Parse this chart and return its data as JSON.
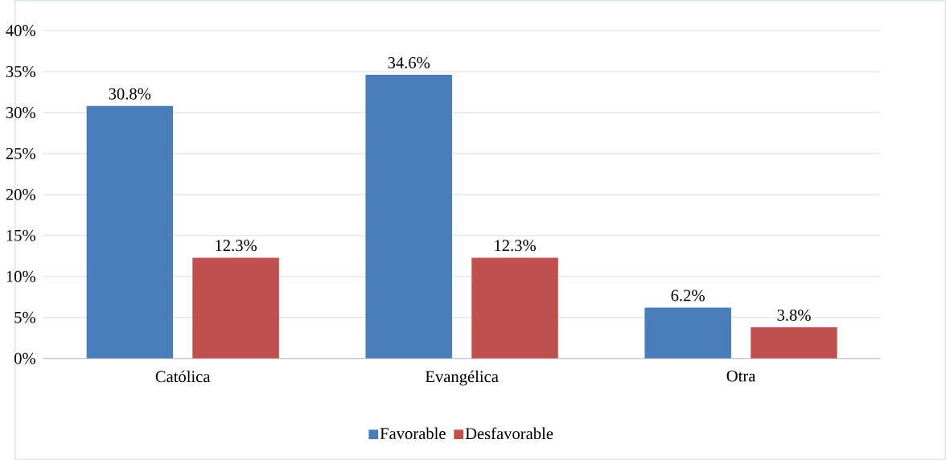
{
  "chart_data": {
    "type": "bar",
    "categories": [
      "Católica",
      "Evangélica",
      "Otra"
    ],
    "series": [
      {
        "name": "Favorable",
        "color": "#4a7ebb",
        "values": [
          30.8,
          34.6,
          6.2
        ],
        "value_labels": [
          "30.8%",
          "34.6%",
          "6.2%"
        ]
      },
      {
        "name": "Desfavorable",
        "color": "#c0504d",
        "values": [
          12.3,
          12.3,
          3.8
        ],
        "value_labels": [
          "12.3%",
          "12.3%",
          "3.8%"
        ]
      }
    ],
    "ylim": [
      0,
      40
    ],
    "yticks": [
      {
        "value": 0,
        "label": "0%"
      },
      {
        "value": 5,
        "label": "5%"
      },
      {
        "value": 10,
        "label": "10%"
      },
      {
        "value": 15,
        "label": "15%"
      },
      {
        "value": 20,
        "label": "20%"
      },
      {
        "value": 25,
        "label": "25%"
      },
      {
        "value": 30,
        "label": "30%"
      },
      {
        "value": 35,
        "label": "35%"
      },
      {
        "value": 40,
        "label": "40%"
      }
    ],
    "grid": "y",
    "legend": "bottom"
  }
}
